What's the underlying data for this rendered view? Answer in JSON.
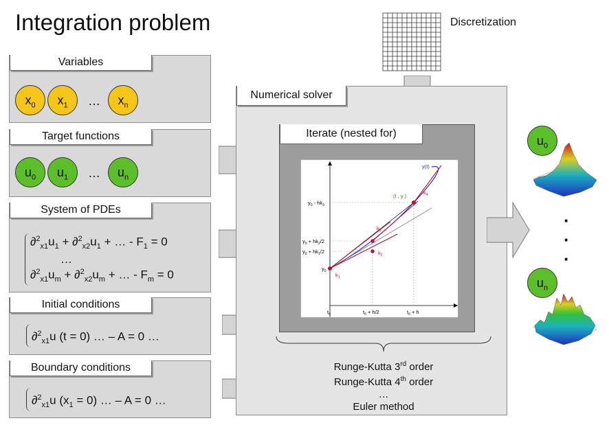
{
  "title": "Integration problem",
  "discretization": {
    "label": "Discretization"
  },
  "variables": {
    "header": "Variables",
    "items": [
      "x0",
      "x1",
      "xn"
    ],
    "base": "x",
    "subs": [
      "0",
      "1",
      "n"
    ],
    "ellipsis": "…"
  },
  "target_functions": {
    "header": "Target functions",
    "base": "u",
    "subs": [
      "0",
      "1",
      "n"
    ],
    "ellipsis": "…"
  },
  "pdes": {
    "header": "System of PDEs",
    "line1_tail": "u1 + … - F1 = 0",
    "dots": "…"
  },
  "initial_conditions": {
    "header": "Initial conditions"
  },
  "boundary_conditions": {
    "header": "Boundary conditions"
  },
  "solver": {
    "header": "Numerical solver",
    "iterate_header": "Iterate (nested for)"
  },
  "methods": [
    "Runge-Kutta 3rd order",
    "Runge-Kutta 4th order",
    "…",
    "Euler method"
  ],
  "outputs": {
    "first": "u0",
    "first_sub": "0",
    "last": "un",
    "last_sub": "n",
    "dots": [
      "·",
      "·",
      "·"
    ]
  },
  "plot_labels": {
    "yt": "y(t)",
    "t0": "t",
    "t0_sub": "0",
    "t0h2": "t",
    "t0h2_sub": "0",
    "t0h2_tail": " + h/2",
    "t0h": "t",
    "t0h_sub": "0",
    "t0h_tail": " + h",
    "y0": "y",
    "y0_sub": "0",
    "y0hk1": "y",
    "y0hk1_tail": " + hk",
    "y0hk1_tail2": "/2",
    "y0hk2": "y",
    "y0hk2_tail": " + hk",
    "y0hk2_tail2": "/2",
    "y0hk3": "y",
    "y0hk3_tail": " - hk",
    "t1y1": "(t , y )",
    "k1": "k",
    "k2": "k",
    "k3": "k",
    "k4": "k"
  },
  "colors": {
    "yellow": "#f5c518",
    "green": "#5cbf2a",
    "red": "#c0102c",
    "blue": "#2233cc"
  }
}
